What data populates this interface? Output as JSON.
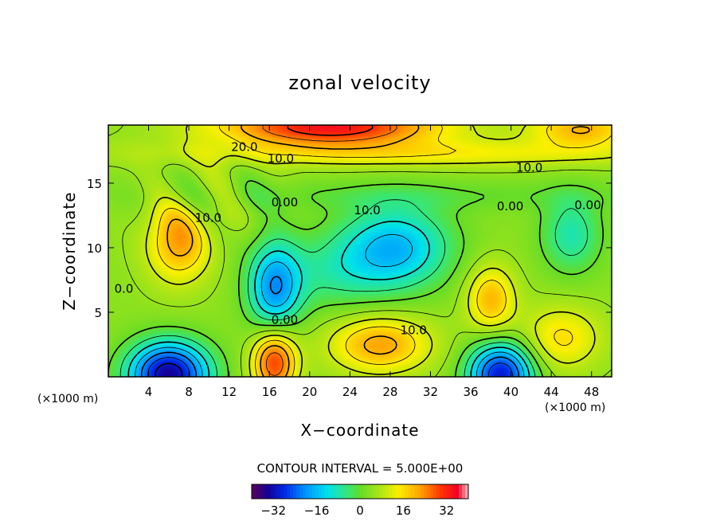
{
  "chart_data": {
    "type": "heatmap",
    "title": "zonal velocity",
    "xlabel": "X−coordinate",
    "ylabel": "Z−coordinate",
    "x_unit": "(×1000 m)",
    "z_unit": "(×1000 m)",
    "xlim": [
      0,
      50
    ],
    "ylim": [
      0,
      19.5
    ],
    "x_ticks": [
      4,
      8,
      12,
      16,
      20,
      24,
      28,
      32,
      36,
      40,
      44,
      48
    ],
    "y_ticks": [
      5,
      10,
      15
    ],
    "contour_interval_text": "CONTOUR INTERVAL = 5.000E+00",
    "contour_interval": 5.0,
    "colorbar": {
      "min": -40,
      "max": 40,
      "tick_values": [
        -32,
        -16,
        0,
        16,
        32
      ],
      "tick_labels": [
        "−32",
        "−16",
        "0",
        "16",
        "32"
      ]
    },
    "contour_labels": [
      {
        "text": "20.0",
        "x": 12.2,
        "y": 17.5
      },
      {
        "text": "10.0",
        "x": 15.8,
        "y": 16.6
      },
      {
        "text": "10.0",
        "x": 40.5,
        "y": 15.9
      },
      {
        "text": "0.00",
        "x": 16.2,
        "y": 13.2
      },
      {
        "text": "10.0",
        "x": 24.4,
        "y": 12.6
      },
      {
        "text": "0.00",
        "x": 38.6,
        "y": 12.9
      },
      {
        "text": "0.00",
        "x": 46.3,
        "y": 13.0
      },
      {
        "text": "10.0",
        "x": 8.6,
        "y": 12.0
      },
      {
        "text": "0.0",
        "x": 0.6,
        "y": 6.5
      },
      {
        "text": "0.00",
        "x": 16.2,
        "y": 4.1
      },
      {
        "text": "10.0",
        "x": 29.0,
        "y": 3.3
      }
    ],
    "features": [
      {
        "kind": "jet",
        "sign": "positive",
        "x": [
          12,
          34
        ],
        "z": [
          17.5,
          19.5
        ],
        "peak": 32
      },
      {
        "kind": "max",
        "x": 7,
        "z": 10.5,
        "value": 22
      },
      {
        "kind": "max",
        "x": 38,
        "z": 6.0,
        "value": 20
      },
      {
        "kind": "max",
        "x": 16.5,
        "z": 0.8,
        "value": 30
      },
      {
        "kind": "max",
        "x": 27,
        "z": 2.5,
        "value": 22
      },
      {
        "kind": "min",
        "x": 28.5,
        "z": 10.0,
        "value": -16
      },
      {
        "kind": "min",
        "x": 16.5,
        "z": 6.8,
        "value": -18
      },
      {
        "kind": "min",
        "x": 6,
        "z": 0.4,
        "value": -34
      },
      {
        "kind": "min",
        "x": 39,
        "z": 0.4,
        "value": -30
      },
      {
        "kind": "min",
        "x": 46,
        "z": 11.0,
        "value": -8
      }
    ]
  }
}
